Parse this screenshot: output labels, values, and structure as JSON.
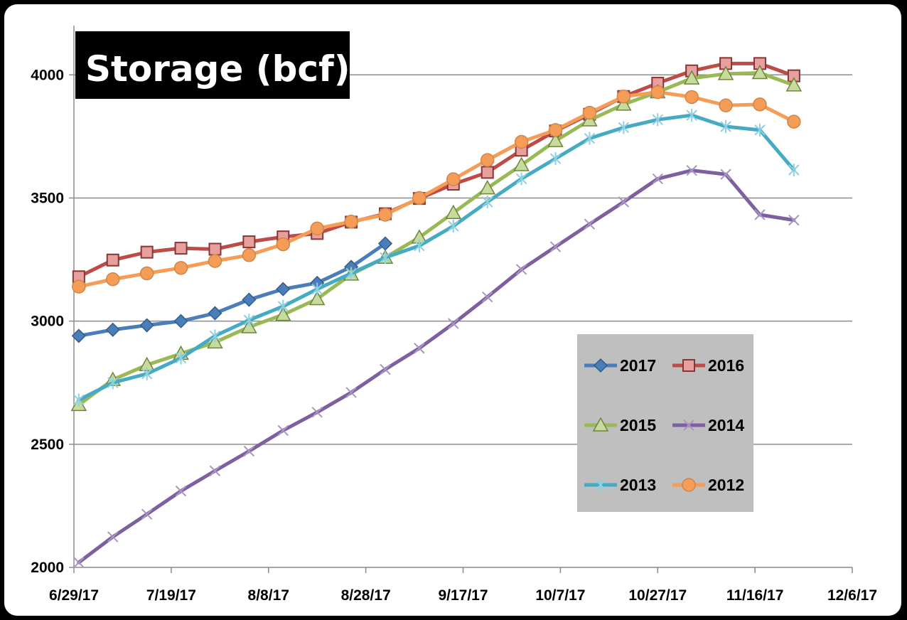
{
  "chart_data": {
    "type": "line",
    "title": "Storage (bcf)",
    "xlabel": "",
    "ylabel": "",
    "ylim": [
      2000,
      4200
    ],
    "y_ticks": [
      "2000",
      "2500",
      "3000",
      "3500",
      "4000"
    ],
    "x_ticks": [
      "6/29/17",
      "7/19/17",
      "8/8/17",
      "8/28/17",
      "9/17/17",
      "10/7/17",
      "10/27/17",
      "11/16/17",
      "12/6/17"
    ],
    "grid": "horizontal",
    "legend_position": "center-right",
    "x": [
      "6/30/17",
      "7/7/17",
      "7/14/17",
      "7/21/17",
      "7/28/17",
      "8/4/17",
      "8/11/17",
      "8/18/17",
      "8/25/17",
      "9/1/17",
      "9/8/17",
      "9/15/17",
      "9/22/17",
      "9/29/17",
      "10/6/17",
      "10/13/17",
      "10/20/17",
      "10/27/17",
      "11/3/17",
      "11/10/17",
      "11/17/17",
      "11/24/17",
      "12/1/17"
    ],
    "series": [
      {
        "name": "2017",
        "color": "#4A7EBB",
        "marker": "diamond",
        "values": [
          2940,
          2965,
          2983,
          3000,
          3032,
          3087,
          3130,
          3155,
          3220,
          3315,
          null,
          null,
          null,
          null,
          null,
          null,
          null,
          null,
          null,
          null,
          null,
          null,
          null
        ]
      },
      {
        "name": "2016",
        "color": "#BE4B48",
        "marker": "square",
        "values": [
          3180,
          3248,
          3280,
          3296,
          3292,
          3322,
          3342,
          3356,
          3402,
          3436,
          3498,
          3556,
          3604,
          3694,
          3772,
          3840,
          3912,
          3966,
          4016,
          4046,
          4046,
          3996,
          null
        ]
      },
      {
        "name": "2015",
        "color": "#98B954",
        "marker": "triangle",
        "values": [
          2660,
          2762,
          2822,
          2868,
          2914,
          2976,
          3026,
          3090,
          3190,
          3258,
          3340,
          3440,
          3540,
          3634,
          3732,
          3816,
          3880,
          3930,
          3986,
          4004,
          4008,
          3958,
          null
        ]
      },
      {
        "name": "2014",
        "color": "#7D60A0",
        "marker": "x",
        "values": [
          2020,
          2124,
          2216,
          2310,
          2392,
          2472,
          2556,
          2630,
          2710,
          2804,
          2890,
          2990,
          3098,
          3210,
          3302,
          3394,
          3484,
          3578,
          3612,
          3596,
          3432,
          3410,
          null
        ]
      },
      {
        "name": "2013",
        "color": "#46AAC5",
        "marker": "star",
        "values": [
          2680,
          2750,
          2786,
          2850,
          2940,
          3004,
          3060,
          3130,
          3194,
          3258,
          3306,
          3386,
          3484,
          3578,
          3660,
          3742,
          3786,
          3818,
          3836,
          3790,
          3776,
          3614,
          null
        ]
      },
      {
        "name": "2012",
        "color": "#F59D56",
        "marker": "circle",
        "values": [
          3140,
          3170,
          3194,
          3216,
          3244,
          3268,
          3312,
          3376,
          3404,
          3432,
          3500,
          3576,
          3654,
          3728,
          3776,
          3846,
          3912,
          3930,
          3910,
          3876,
          3880,
          3810,
          null
        ]
      }
    ]
  }
}
